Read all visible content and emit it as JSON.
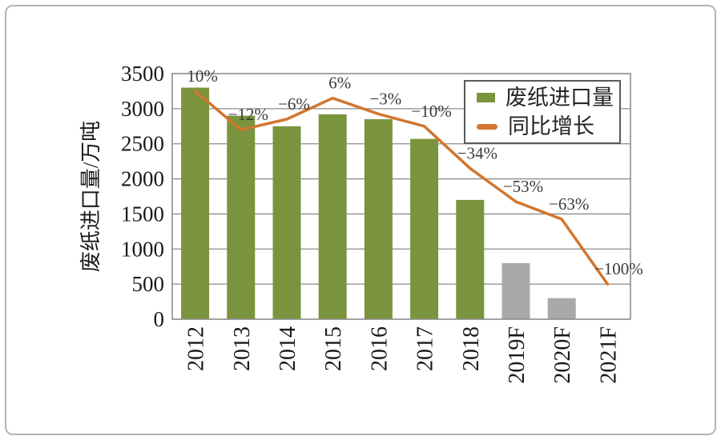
{
  "chart_data": {
    "type": "bar",
    "combo": "bar+line",
    "title": "",
    "xlabel": "",
    "ylabel": "废纸进口量/万吨",
    "categories": [
      "2012",
      "2013",
      "2014",
      "2015",
      "2016",
      "2017",
      "2018",
      "2019F",
      "2020F",
      "2021F"
    ],
    "yticks": [
      0,
      500,
      1000,
      1500,
      2000,
      2500,
      3000,
      3500
    ],
    "ylim": [
      0,
      3500
    ],
    "secondary_ylim_pct": [
      -120,
      20
    ],
    "grid": "horizontal",
    "series": [
      {
        "name": "废纸进口量",
        "type": "bar",
        "axis": "primary",
        "values": [
          3300,
          2900,
          2750,
          2920,
          2850,
          2570,
          1700,
          800,
          300,
          null
        ],
        "segment_styles": [
          "actual",
          "actual",
          "actual",
          "actual",
          "actual",
          "actual",
          "actual",
          "forecast",
          "forecast",
          "none"
        ]
      },
      {
        "name": "同比增长",
        "type": "line",
        "axis": "secondary",
        "values": [
          10,
          -12,
          -6,
          6,
          -3,
          -10,
          -34,
          -53,
          -63,
          -100
        ],
        "labels": [
          "10%",
          "−12%",
          "−6%",
          "6%",
          "−3%",
          "−10%",
          "−34%",
          "−53%",
          "−63%",
          "−100%"
        ]
      }
    ],
    "legend": {
      "position": "top-right-inside",
      "items": [
        {
          "label": "废纸进口量",
          "swatch": "bar"
        },
        {
          "label": "同比增长",
          "swatch": "line"
        }
      ]
    },
    "colors": {
      "bar_actual": "#7A943E",
      "bar_forecast": "#A9A9A9",
      "line": "#D2762F",
      "grid": "#8C8C8C",
      "axis_text": "#1A1A1A",
      "pct_label_text": "#3A3A3A",
      "legend_border": "#595959",
      "legend_text": "#262626",
      "frame_border": "#B3B3B3",
      "background": "#FFFFFF"
    }
  }
}
